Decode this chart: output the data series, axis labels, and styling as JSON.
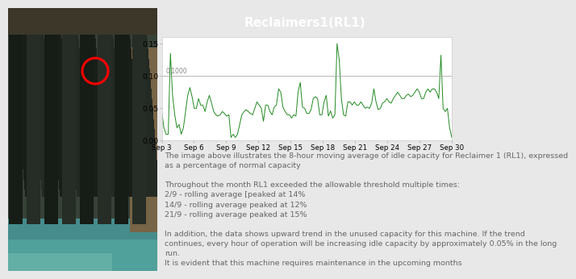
{
  "title": "Reclaimers1(RL1)",
  "title_bg": "#555555",
  "title_color": "#ffffff",
  "line_color": "#228B22",
  "threshold_value": 0.1,
  "threshold_label": "0.1000",
  "ylim": [
    0.0,
    0.16
  ],
  "yticks": [
    0.0,
    0.05,
    0.1,
    0.15
  ],
  "ytick_labels": [
    "0.00",
    "0.05",
    "0.10",
    "0.15"
  ],
  "x_tick_labels": [
    "Sep 3",
    "Sep 6",
    "Sep 9",
    "Sep 12",
    "Sep 15",
    "Sep 18",
    "Sep 21",
    "Sep 24",
    "Sep 27",
    "Sep 30"
  ],
  "fig_bg": "#e8e8e8",
  "chart_bg": "#ffffff",
  "text_bg": "#ffffff",
  "text_lines": [
    "The image above illustrates the 8-hour moving average of idle capacity for Reclaimer 1 (RL1), expressed",
    "as a percentage of normal capacity",
    "",
    "Throughout the month RL1 exceeded the allowable threshold multiple times:",
    "2/9 - rolling average [peaked at 14%",
    "14/9 - rolling average peaked at 12%",
    "21/9 - rolling average peaked at 15%",
    "",
    "In addition, the data shows upward trend in the unused capacity for this machine. If the trend",
    "continues, every hour of operation will be increasing idle capacity by approximately 0.05% in the long",
    "run.",
    "It is evident that this machine requires maintenance in the upcoming months"
  ],
  "text_fontsize": 6.8,
  "text_color": "#666666",
  "y_values": [
    0.045,
    0.02,
    0.01,
    0.01,
    0.135,
    0.07,
    0.04,
    0.02,
    0.025,
    0.01,
    0.02,
    0.045,
    0.07,
    0.082,
    0.068,
    0.05,
    0.05,
    0.065,
    0.055,
    0.055,
    0.045,
    0.06,
    0.07,
    0.058,
    0.045,
    0.04,
    0.038,
    0.04,
    0.045,
    0.042,
    0.038,
    0.04,
    0.005,
    0.01,
    0.005,
    0.01,
    0.025,
    0.04,
    0.045,
    0.048,
    0.045,
    0.042,
    0.04,
    0.05,
    0.06,
    0.055,
    0.05,
    0.03,
    0.055,
    0.055,
    0.045,
    0.04,
    0.052,
    0.055,
    0.08,
    0.075,
    0.052,
    0.045,
    0.04,
    0.04,
    0.035,
    0.04,
    0.038,
    0.075,
    0.09,
    0.052,
    0.05,
    0.042,
    0.042,
    0.048,
    0.065,
    0.068,
    0.065,
    0.04,
    0.04,
    0.06,
    0.07,
    0.038,
    0.046,
    0.035,
    0.04,
    0.15,
    0.125,
    0.065,
    0.04,
    0.038,
    0.06,
    0.06,
    0.055,
    0.06,
    0.055,
    0.055,
    0.06,
    0.055,
    0.05,
    0.052,
    0.05,
    0.058,
    0.08,
    0.06,
    0.048,
    0.05,
    0.058,
    0.06,
    0.065,
    0.06,
    0.058,
    0.065,
    0.07,
    0.075,
    0.07,
    0.065,
    0.065,
    0.07,
    0.072,
    0.068,
    0.07,
    0.075,
    0.08,
    0.075,
    0.065,
    0.065,
    0.075,
    0.08,
    0.075,
    0.08,
    0.08,
    0.075,
    0.065,
    0.132,
    0.05,
    0.045,
    0.05,
    0.02,
    0.005
  ]
}
